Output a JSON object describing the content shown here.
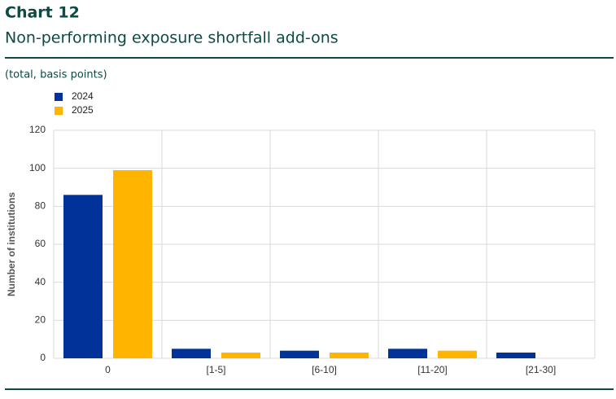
{
  "chart_data": {
    "type": "bar",
    "label": "Chart 12",
    "title": "Non-performing exposure shortfall add-ons",
    "subtitle": "(total, basis points)",
    "y_label": "Number of institutions",
    "categories": [
      "0",
      "[1-5]",
      "[6-10]",
      "[11-20]",
      "[21-30]"
    ],
    "series": [
      {
        "name": "2024",
        "color": "#003299",
        "values": [
          86,
          5,
          4,
          5,
          3
        ]
      },
      {
        "name": "2025",
        "color": "#ffb400",
        "values": [
          99,
          3,
          3,
          4,
          0
        ]
      }
    ],
    "ylim": [
      0,
      120
    ],
    "yticks": [
      0,
      20,
      40,
      60,
      80,
      100,
      120
    ],
    "grid": true
  }
}
